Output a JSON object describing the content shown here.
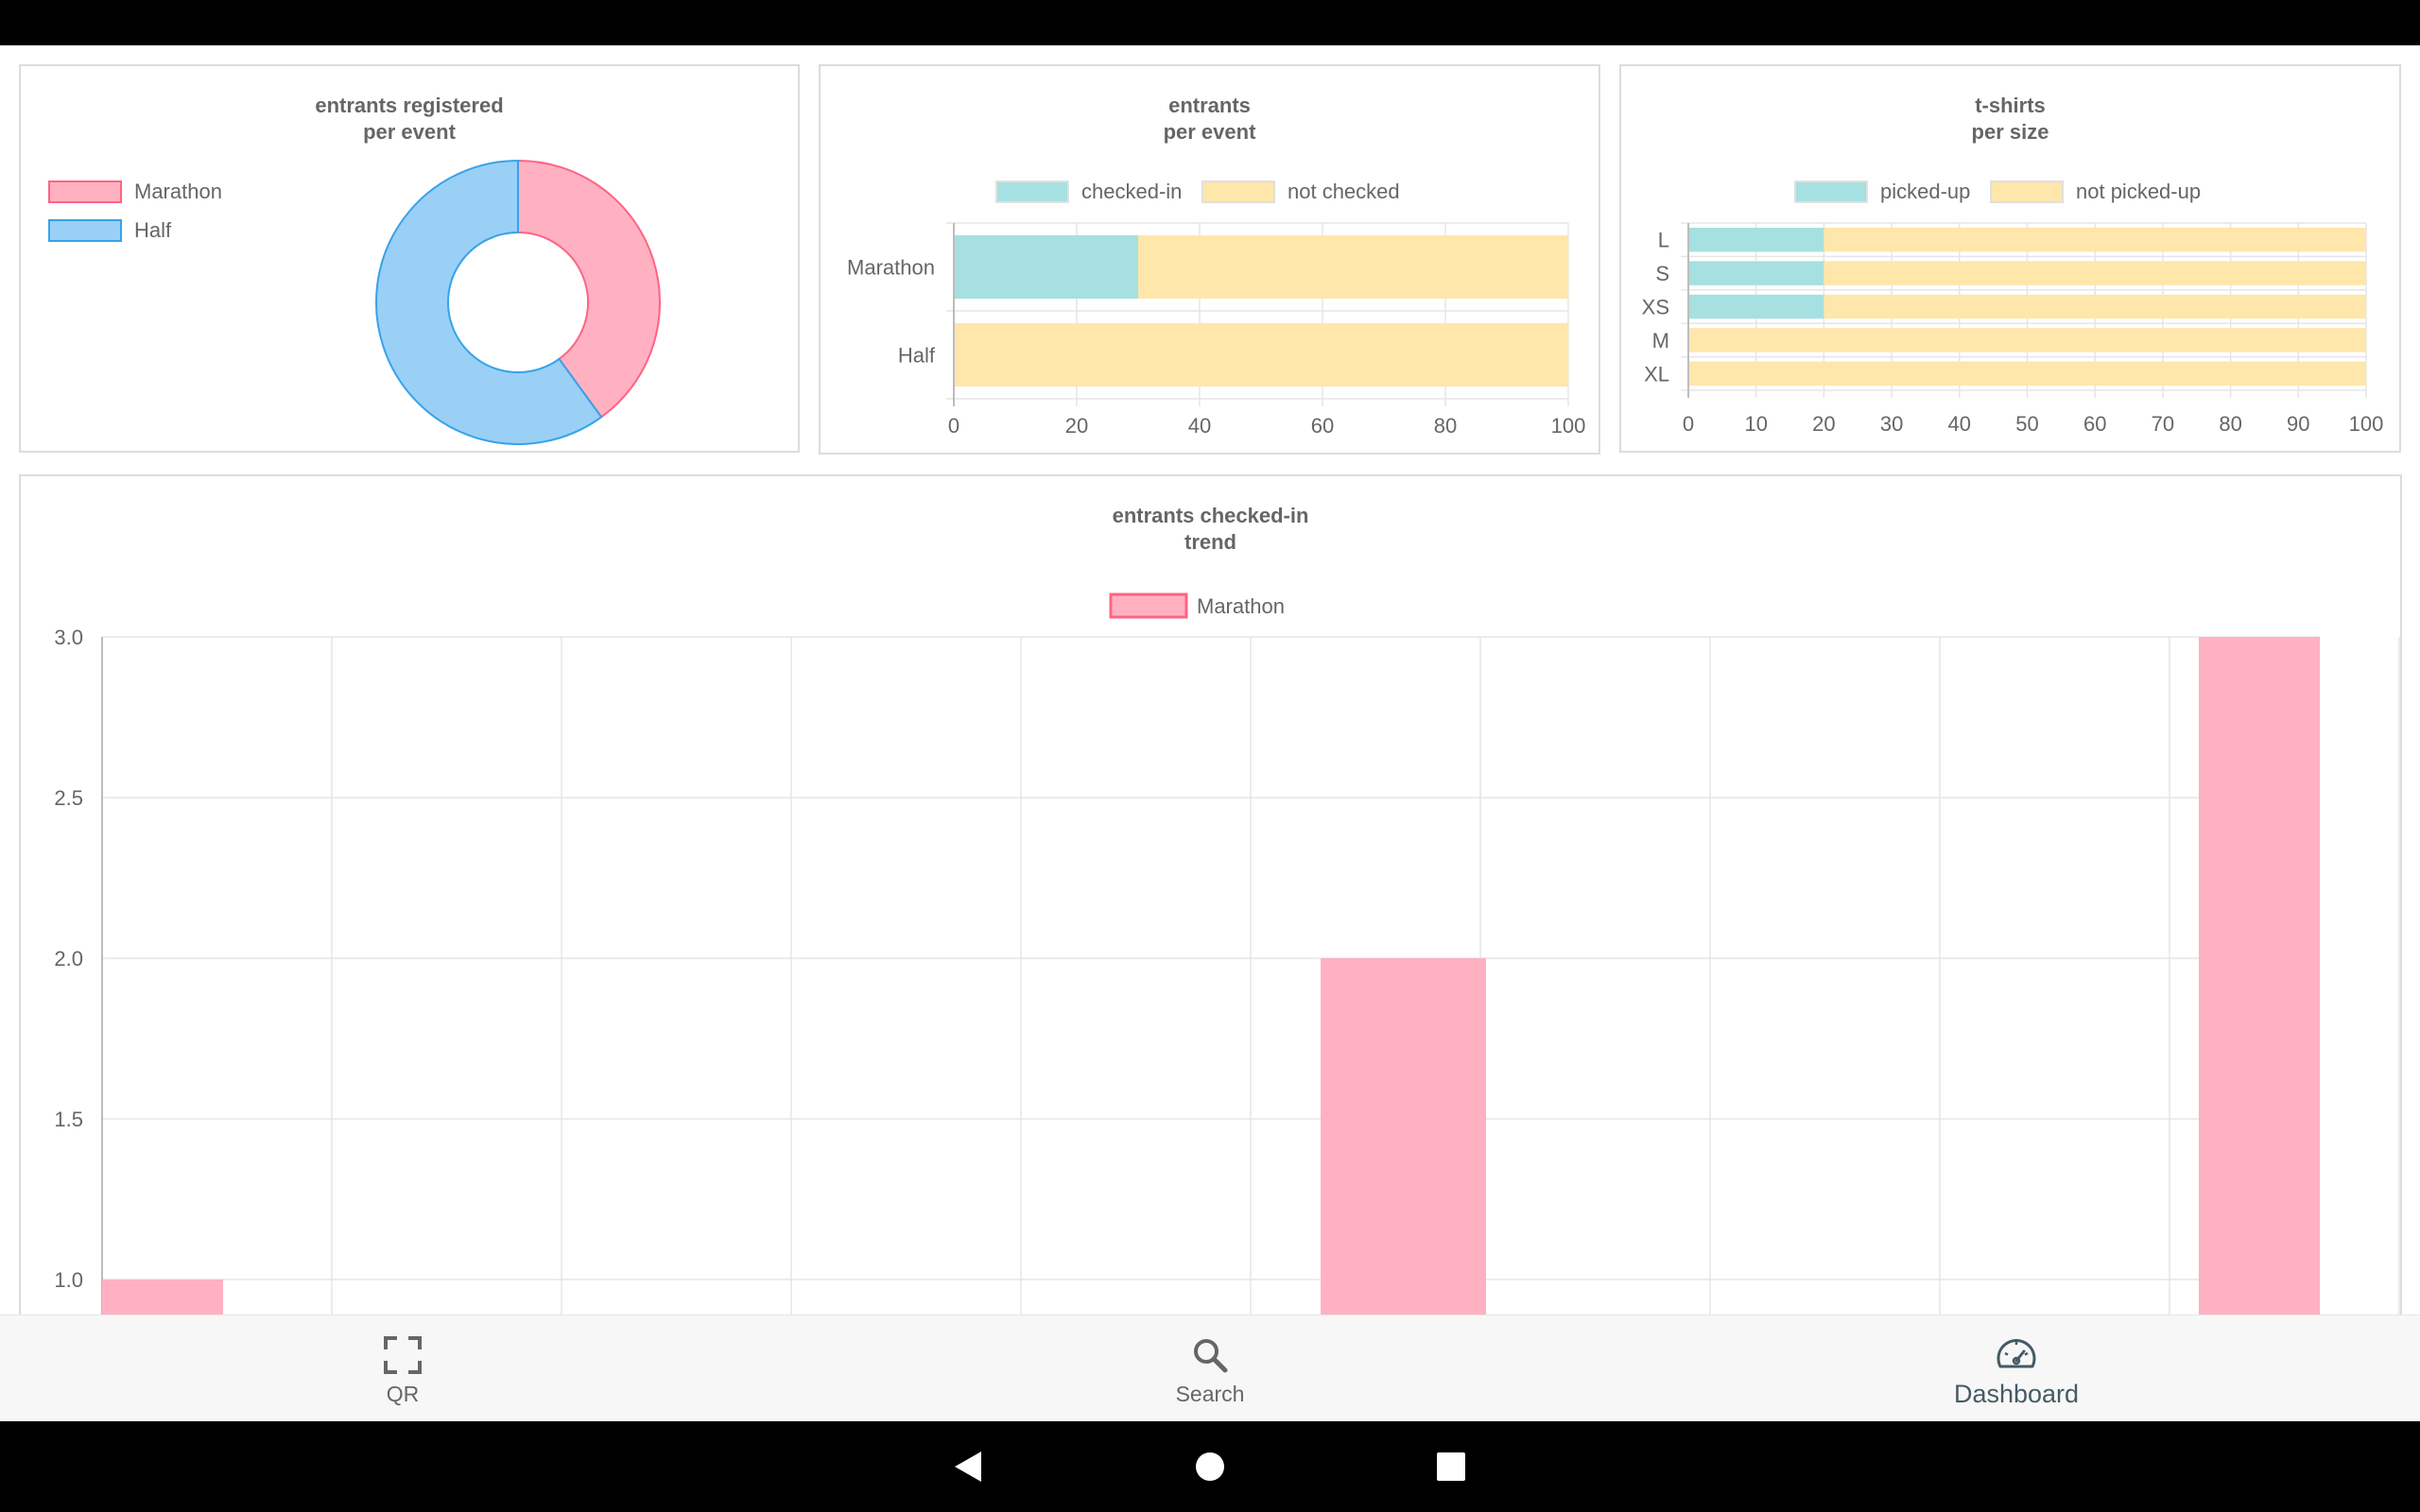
{
  "charts": {
    "registered": {
      "title_line1": "entrants registered",
      "title_line2": "per event"
    },
    "entrants": {
      "title_line1": "entrants",
      "title_line2": "per event"
    },
    "tshirts": {
      "title_line1": "t-shirts",
      "title_line2": "per size"
    },
    "trend": {
      "title_line1": "entrants checked-in",
      "title_line2": "trend"
    }
  },
  "nav": {
    "qr_label": "QR",
    "search_label": "Search",
    "dashboard_label": "Dashboard",
    "active": "Dashboard",
    "icons": [
      "qr-scan-icon",
      "search-icon",
      "dashboard-gauge-icon"
    ]
  },
  "colors": {
    "pink": "#ffb1c1",
    "pink_border": "#ff6384",
    "blue": "#9ad0f5",
    "blue_border": "#36a2eb",
    "teal": "#a6e0e0",
    "yellow": "#ffe6aa",
    "grid": "#e5e5e5"
  },
  "chart_data": [
    {
      "type": "pie",
      "variant": "doughnut",
      "title": [
        "entrants registered",
        "per event"
      ],
      "labels": [
        "Marathon",
        "Half"
      ],
      "values": [
        40,
        60
      ],
      "legend": "left"
    },
    {
      "type": "bar",
      "orientation": "horizontal",
      "stacked": true,
      "title": [
        "entrants",
        "per event"
      ],
      "categories": [
        "Marathon",
        "Half"
      ],
      "series": [
        {
          "name": "checked-in",
          "values": [
            30,
            0
          ]
        },
        {
          "name": "not checked",
          "values": [
            70,
            100
          ]
        }
      ],
      "xlim": [
        0,
        100
      ],
      "xticks": [
        0,
        20,
        40,
        60,
        80,
        100
      ],
      "legend": "top"
    },
    {
      "type": "bar",
      "orientation": "horizontal",
      "stacked": true,
      "title": [
        "t-shirts",
        "per size"
      ],
      "categories": [
        "L",
        "S",
        "XS",
        "M",
        "XL"
      ],
      "series": [
        {
          "name": "picked-up",
          "values": [
            20,
            20,
            20,
            0,
            0
          ]
        },
        {
          "name": "not picked-up",
          "values": [
            80,
            80,
            80,
            100,
            100
          ]
        }
      ],
      "xlim": [
        0,
        100
      ],
      "xticks": [
        0,
        10,
        20,
        30,
        40,
        50,
        60,
        70,
        80,
        90,
        100
      ],
      "legend": "top"
    },
    {
      "type": "bar",
      "title": [
        "entrants checked-in",
        "trend"
      ],
      "series": [
        {
          "name": "Marathon",
          "points": [
            {
              "x": 0,
              "y": 1
            },
            {
              "x": 6,
              "y": 2
            },
            {
              "x": 10,
              "y": 3
            }
          ]
        }
      ],
      "xlim": [
        0,
        10
      ],
      "yticks": [
        "1.0",
        "1.5",
        "2.0",
        "2.5",
        "3.0"
      ],
      "ylim_visible": [
        0.9,
        3.0
      ],
      "legend": "top"
    }
  ]
}
